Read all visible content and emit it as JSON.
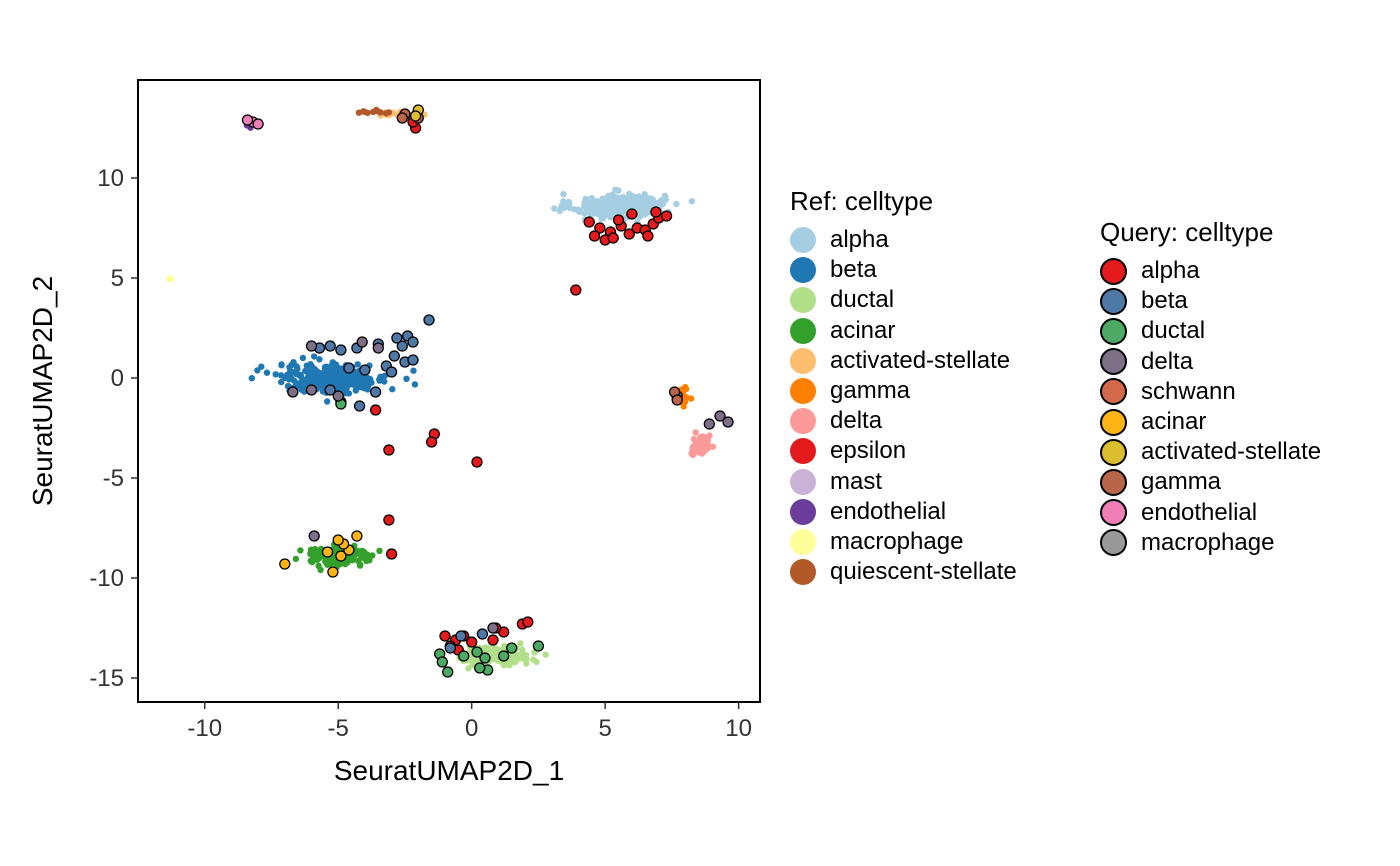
{
  "chart_data": {
    "type": "scatter",
    "xlabel": "SeuratUMAP2D_1",
    "ylabel": "SeuratUMAP2D_2",
    "xlim": [
      -12.5,
      10.8
    ],
    "ylim": [
      -16.2,
      14.9
    ],
    "xticks": [
      -10,
      -5,
      0,
      5,
      10
    ],
    "xtick_labels": [
      "-10",
      "-5",
      "0",
      "5",
      "10"
    ],
    "yticks": [
      10,
      5,
      0,
      -5,
      -10,
      -15
    ],
    "ytick_labels": [
      "10",
      "5",
      "0",
      "-5",
      "-10",
      "-15"
    ],
    "grid": false,
    "legends": [
      {
        "title": "Ref: celltype",
        "placement": "right",
        "entries": [
          {
            "label": "alpha",
            "color": "#A6CEE3"
          },
          {
            "label": "beta",
            "color": "#1F78B4"
          },
          {
            "label": "ductal",
            "color": "#B2DF8A"
          },
          {
            "label": "acinar",
            "color": "#33A02C"
          },
          {
            "label": "activated-stellate",
            "color": "#FDBF6F"
          },
          {
            "label": "gamma",
            "color": "#FF7F00"
          },
          {
            "label": "delta",
            "color": "#FB9A99"
          },
          {
            "label": "epsilon",
            "color": "#E31A1C"
          },
          {
            "label": "mast",
            "color": "#CAB2D6"
          },
          {
            "label": "endothelial",
            "color": "#6A3D9A"
          },
          {
            "label": "macrophage",
            "color": "#FFFF99"
          },
          {
            "label": "quiescent-stellate",
            "color": "#B15928"
          }
        ]
      },
      {
        "title": "Query: celltype",
        "placement": "right",
        "entries": [
          {
            "label": "alpha",
            "color": "#E41A1C"
          },
          {
            "label": "beta",
            "color": "#4E79A7"
          },
          {
            "label": "ductal",
            "color": "#4DAA65"
          },
          {
            "label": "delta",
            "color": "#7D6F86"
          },
          {
            "label": "schwann",
            "color": "#D2694B"
          },
          {
            "label": "acinar",
            "color": "#FDB515"
          },
          {
            "label": "activated-stellate",
            "color": "#DCBD2E"
          },
          {
            "label": "gamma",
            "color": "#B9654A"
          },
          {
            "label": "endothelial",
            "color": "#F07FB8"
          },
          {
            "label": "macrophage",
            "color": "#999999"
          }
        ]
      }
    ],
    "ref_clusters": [
      {
        "celltype": "alpha",
        "cx": 5.5,
        "cy": 8.6,
        "sx": 1.55,
        "sy": 0.55,
        "n": 320
      },
      {
        "celltype": "beta",
        "cx": -5.2,
        "cy": 0.0,
        "sx": 1.9,
        "sy": 0.65,
        "n": 300
      },
      {
        "celltype": "ductal",
        "cx": 0.9,
        "cy": -13.9,
        "sx": 1.2,
        "sy": 0.45,
        "n": 150
      },
      {
        "celltype": "acinar",
        "cx": -5.0,
        "cy": -8.9,
        "sx": 1.25,
        "sy": 0.45,
        "n": 130
      },
      {
        "celltype": "delta",
        "cx": 8.6,
        "cy": -3.4,
        "sx": 0.3,
        "sy": 0.5,
        "n": 60
      },
      {
        "celltype": "gamma",
        "cx": 7.9,
        "cy": -0.9,
        "sx": 0.2,
        "sy": 0.35,
        "n": 25
      },
      {
        "celltype": "activated-stellate",
        "cx": -3.0,
        "cy": 13.2,
        "sx": 0.8,
        "sy": 0.1,
        "n": 18
      },
      {
        "celltype": "quiescent-stellate",
        "cx": -3.8,
        "cy": 13.3,
        "sx": 0.6,
        "sy": 0.08,
        "n": 10
      },
      {
        "celltype": "endothelial",
        "cx": -8.4,
        "cy": 12.6,
        "sx": 0.1,
        "sy": 0.15,
        "n": 4
      },
      {
        "celltype": "macrophage",
        "cx": -11.3,
        "cy": 4.95,
        "sx": 0.06,
        "sy": 0.06,
        "n": 3
      },
      {
        "celltype": "mast",
        "cx": 7.6,
        "cy": -0.9,
        "sx": 0.1,
        "sy": 0.1,
        "n": 2
      }
    ],
    "query_points": [
      {
        "celltype": "alpha",
        "x": 4.4,
        "y": 7.8
      },
      {
        "celltype": "alpha",
        "x": 4.8,
        "y": 7.5
      },
      {
        "celltype": "alpha",
        "x": 5.2,
        "y": 7.3
      },
      {
        "celltype": "alpha",
        "x": 5.6,
        "y": 7.6
      },
      {
        "celltype": "alpha",
        "x": 5.9,
        "y": 7.2
      },
      {
        "celltype": "alpha",
        "x": 6.2,
        "y": 7.5
      },
      {
        "celltype": "alpha",
        "x": 6.5,
        "y": 7.4
      },
      {
        "celltype": "alpha",
        "x": 6.8,
        "y": 7.7
      },
      {
        "celltype": "alpha",
        "x": 7.0,
        "y": 8.0
      },
      {
        "celltype": "alpha",
        "x": 7.3,
        "y": 8.1
      },
      {
        "celltype": "alpha",
        "x": 5.0,
        "y": 6.9
      },
      {
        "celltype": "alpha",
        "x": 5.5,
        "y": 7.9
      },
      {
        "celltype": "alpha",
        "x": 6.0,
        "y": 8.2
      },
      {
        "celltype": "alpha",
        "x": 4.6,
        "y": 7.1
      },
      {
        "celltype": "alpha",
        "x": 6.6,
        "y": 7.1
      },
      {
        "celltype": "alpha",
        "x": 6.9,
        "y": 8.3
      },
      {
        "celltype": "alpha",
        "x": 5.3,
        "y": 7.0
      },
      {
        "celltype": "alpha",
        "x": 3.9,
        "y": 4.4
      },
      {
        "celltype": "alpha",
        "x": -3.6,
        "y": -1.6
      },
      {
        "celltype": "alpha",
        "x": -3.1,
        "y": -3.6
      },
      {
        "celltype": "alpha",
        "x": -1.4,
        "y": -2.8
      },
      {
        "celltype": "alpha",
        "x": -1.5,
        "y": -3.2
      },
      {
        "celltype": "alpha",
        "x": 0.2,
        "y": -4.2
      },
      {
        "celltype": "alpha",
        "x": -3.1,
        "y": -7.1
      },
      {
        "celltype": "alpha",
        "x": -3.0,
        "y": -8.8
      },
      {
        "celltype": "alpha",
        "x": -2.1,
        "y": 12.5
      },
      {
        "celltype": "alpha",
        "x": -2.2,
        "y": 12.8
      },
      {
        "celltype": "alpha",
        "x": -1.0,
        "y": -12.9
      },
      {
        "celltype": "alpha",
        "x": -0.6,
        "y": -13.1
      },
      {
        "celltype": "alpha",
        "x": -0.3,
        "y": -12.9
      },
      {
        "celltype": "alpha",
        "x": 0.0,
        "y": -13.2
      },
      {
        "celltype": "alpha",
        "x": -0.8,
        "y": -13.4
      },
      {
        "celltype": "alpha",
        "x": 0.8,
        "y": -13.1
      },
      {
        "celltype": "alpha",
        "x": 1.2,
        "y": -12.7
      },
      {
        "celltype": "alpha",
        "x": 1.9,
        "y": -12.3
      },
      {
        "celltype": "alpha",
        "x": 2.1,
        "y": -12.2
      },
      {
        "celltype": "alpha",
        "x": -0.5,
        "y": -13.6
      },
      {
        "celltype": "alpha",
        "x": 0.9,
        "y": -12.5
      },
      {
        "celltype": "beta",
        "x": -1.6,
        "y": 2.9
      },
      {
        "celltype": "beta",
        "x": -2.4,
        "y": 2.1
      },
      {
        "celltype": "beta",
        "x": -2.6,
        "y": 1.6
      },
      {
        "celltype": "beta",
        "x": -2.9,
        "y": 1.1
      },
      {
        "celltype": "beta",
        "x": -3.2,
        "y": 0.6
      },
      {
        "celltype": "beta",
        "x": -2.2,
        "y": 1.8
      },
      {
        "celltype": "beta",
        "x": -2.5,
        "y": 0.8
      },
      {
        "celltype": "beta",
        "x": -3.0,
        "y": 0.3
      },
      {
        "celltype": "beta",
        "x": -2.2,
        "y": 0.9
      },
      {
        "celltype": "beta",
        "x": -2.8,
        "y": 2.0
      },
      {
        "celltype": "beta",
        "x": -3.5,
        "y": 1.7
      },
      {
        "celltype": "beta",
        "x": -4.3,
        "y": 1.5
      },
      {
        "celltype": "beta",
        "x": -4.9,
        "y": 1.4
      },
      {
        "celltype": "beta",
        "x": -5.3,
        "y": 1.6
      },
      {
        "celltype": "beta",
        "x": -5.7,
        "y": 1.5
      },
      {
        "celltype": "beta",
        "x": -4.0,
        "y": 0.4
      },
      {
        "celltype": "beta",
        "x": -4.6,
        "y": 0.5
      },
      {
        "celltype": "beta",
        "x": -5.3,
        "y": -0.6
      },
      {
        "celltype": "beta",
        "x": -3.6,
        "y": -0.7
      },
      {
        "celltype": "beta",
        "x": -4.2,
        "y": -1.4
      },
      {
        "celltype": "beta",
        "x": -4.9,
        "y": -1.2
      },
      {
        "celltype": "beta",
        "x": -0.8,
        "y": -13.5
      },
      {
        "celltype": "beta",
        "x": 0.4,
        "y": -12.8
      },
      {
        "celltype": "beta",
        "x": -0.4,
        "y": -12.9
      },
      {
        "celltype": "ductal",
        "x": -4.9,
        "y": -1.3
      },
      {
        "celltype": "ductal",
        "x": -1.2,
        "y": -13.8
      },
      {
        "celltype": "ductal",
        "x": -1.1,
        "y": -14.2
      },
      {
        "celltype": "ductal",
        "x": -0.9,
        "y": -14.7
      },
      {
        "celltype": "ductal",
        "x": -0.3,
        "y": -13.9
      },
      {
        "celltype": "ductal",
        "x": 0.2,
        "y": -13.7
      },
      {
        "celltype": "ductal",
        "x": 0.5,
        "y": -14.0
      },
      {
        "celltype": "ductal",
        "x": 0.6,
        "y": -14.6
      },
      {
        "celltype": "ductal",
        "x": 0.3,
        "y": -14.5
      },
      {
        "celltype": "ductal",
        "x": 1.2,
        "y": -13.9
      },
      {
        "celltype": "ductal",
        "x": 1.5,
        "y": -13.5
      },
      {
        "celltype": "ductal",
        "x": 2.5,
        "y": -13.4
      },
      {
        "celltype": "delta",
        "x": -4.1,
        "y": 1.8
      },
      {
        "celltype": "delta",
        "x": -3.5,
        "y": 1.5
      },
      {
        "celltype": "delta",
        "x": -6.7,
        "y": -0.7
      },
      {
        "celltype": "delta",
        "x": -6.0,
        "y": -0.6
      },
      {
        "celltype": "delta",
        "x": -5.0,
        "y": -0.9
      },
      {
        "celltype": "delta",
        "x": -6.0,
        "y": 1.6
      },
      {
        "celltype": "delta",
        "x": 7.7,
        "y": -0.9
      },
      {
        "celltype": "delta",
        "x": 9.3,
        "y": -1.9
      },
      {
        "celltype": "delta",
        "x": 9.6,
        "y": -2.2
      },
      {
        "celltype": "delta",
        "x": 8.9,
        "y": -2.3
      },
      {
        "celltype": "delta",
        "x": -5.9,
        "y": -7.9
      },
      {
        "celltype": "delta",
        "x": 0.8,
        "y": -12.5
      },
      {
        "celltype": "gamma",
        "x": 7.6,
        "y": -0.7
      },
      {
        "celltype": "gamma",
        "x": 7.7,
        "y": -1.1
      },
      {
        "celltype": "gamma",
        "x": -2.0,
        "y": 13.0
      },
      {
        "celltype": "gamma",
        "x": -2.5,
        "y": 13.2
      },
      {
        "celltype": "gamma",
        "x": -2.6,
        "y": 13.0
      },
      {
        "celltype": "acinar",
        "x": -7.0,
        "y": -9.3
      },
      {
        "celltype": "acinar",
        "x": -5.4,
        "y": -8.7
      },
      {
        "celltype": "acinar",
        "x": -4.9,
        "y": -8.9
      },
      {
        "celltype": "acinar",
        "x": -4.6,
        "y": -8.6
      },
      {
        "celltype": "acinar",
        "x": -4.3,
        "y": -7.9
      },
      {
        "celltype": "acinar",
        "x": -5.2,
        "y": -9.7
      },
      {
        "celltype": "acinar",
        "x": -4.8,
        "y": -8.3
      },
      {
        "celltype": "acinar",
        "x": -5.0,
        "y": -8.1
      },
      {
        "celltype": "activated-stellate",
        "x": -2.0,
        "y": 13.4
      },
      {
        "celltype": "activated-stellate",
        "x": -2.1,
        "y": 13.1
      },
      {
        "celltype": "endothelial",
        "x": -8.2,
        "y": 12.8
      },
      {
        "celltype": "endothelial",
        "x": -8.4,
        "y": 12.9
      },
      {
        "celltype": "endothelial",
        "x": -8.0,
        "y": 12.7
      }
    ]
  }
}
